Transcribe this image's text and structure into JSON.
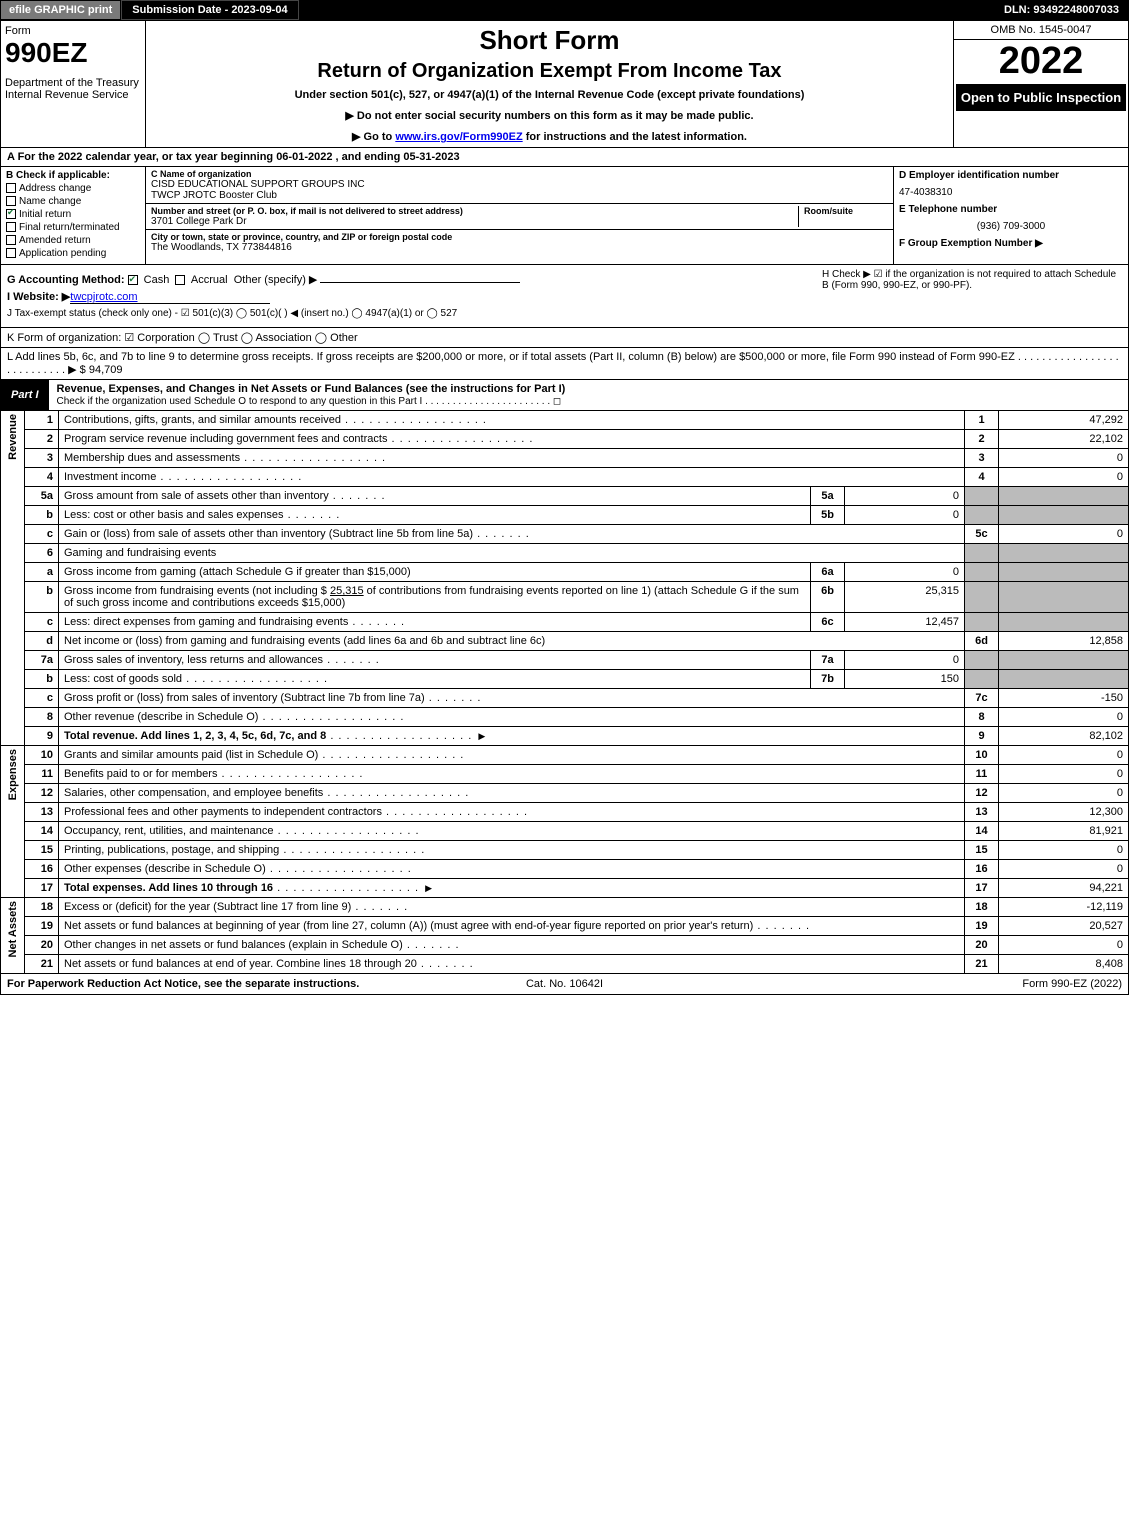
{
  "topbar": {
    "efile": "efile GRAPHIC print",
    "submission": "Submission Date - 2023-09-04",
    "dln": "DLN: 93492248007033"
  },
  "header": {
    "form_word": "Form",
    "form_no": "990EZ",
    "dept": "Department of the Treasury\nInternal Revenue Service",
    "short_form": "Short Form",
    "title": "Return of Organization Exempt From Income Tax",
    "under": "Under section 501(c), 527, or 4947(a)(1) of the Internal Revenue Code (except private foundations)",
    "instr1": "▶ Do not enter social security numbers on this form as it may be made public.",
    "instr2_pre": "▶ Go to ",
    "instr2_link": "www.irs.gov/Form990EZ",
    "instr2_post": " for instructions and the latest information.",
    "omb": "OMB No. 1545-0047",
    "year": "2022",
    "open": "Open to Public Inspection"
  },
  "rowA": "A  For the 2022 calendar year, or tax year beginning 06-01-2022  , and ending 05-31-2023",
  "B": {
    "label": "B  Check if applicable:",
    "items": [
      {
        "label": "Address change",
        "checked": false
      },
      {
        "label": "Name change",
        "checked": false
      },
      {
        "label": "Initial return",
        "checked": true
      },
      {
        "label": "Final return/terminated",
        "checked": false
      },
      {
        "label": "Amended return",
        "checked": false
      },
      {
        "label": "Application pending",
        "checked": false
      }
    ]
  },
  "C": {
    "name_lbl": "C Name of organization",
    "name": "CISD EDUCATIONAL SUPPORT GROUPS INC",
    "name2": "TWCP JROTC Booster Club",
    "addr_lbl": "Number and street (or P. O. box, if mail is not delivered to street address)",
    "room_lbl": "Room/suite",
    "addr": "3701 College Park Dr",
    "city_lbl": "City or town, state or province, country, and ZIP or foreign postal code",
    "city": "The Woodlands, TX   773844816"
  },
  "D": {
    "ein_lbl": "D Employer identification number",
    "ein": "47-4038310",
    "tel_lbl": "E Telephone number",
    "tel": "(936) 709-3000",
    "grp_lbl": "F Group Exemption Number  ▶"
  },
  "G": {
    "label": "G Accounting Method:",
    "cash": "Cash",
    "accrual": "Accrual",
    "other": "Other (specify) ▶"
  },
  "H": "H   Check ▶ ☑ if the organization is not required to attach Schedule B (Form 990, 990-EZ, or 990-PF).",
  "I": {
    "label": "I Website: ▶",
    "val": "twcpjrotc.com"
  },
  "J": "J Tax-exempt status (check only one) - ☑ 501(c)(3)  ◯ 501(c)(  ) ◀ (insert no.)  ◯ 4947(a)(1) or  ◯ 527",
  "K": "K Form of organization:   ☑ Corporation   ◯ Trust   ◯ Association   ◯ Other",
  "L": {
    "text": "L Add lines 5b, 6c, and 7b to line 9 to determine gross receipts. If gross receipts are $200,000 or more, or if total assets (Part II, column (B) below) are $500,000 or more, file Form 990 instead of Form 990-EZ  .  .  .  .  .  .  .  .  .  .  .  .  .  .  .  .  .  .  .  .  .  .  .  .  .  .  .   ▶ $",
    "val": "94,709"
  },
  "part1": {
    "tab": "Part I",
    "title": "Revenue, Expenses, and Changes in Net Assets or Fund Balances (see the instructions for Part I)",
    "check": "Check if the organization used Schedule O to respond to any question in this Part I  .  .  .  .  .  .  .  .  .  .  .  .  .  .  .  .  .  .  .  .  .  .  .  ◻"
  },
  "sections": {
    "revenue": "Revenue",
    "expenses": "Expenses",
    "netassets": "Net Assets"
  },
  "lines": {
    "1": {
      "no": "1",
      "desc": "Contributions, gifts, grants, and similar amounts received",
      "rno": "1",
      "val": "47,292"
    },
    "2": {
      "no": "2",
      "desc": "Program service revenue including government fees and contracts",
      "rno": "2",
      "val": "22,102"
    },
    "3": {
      "no": "3",
      "desc": "Membership dues and assessments",
      "rno": "3",
      "val": "0"
    },
    "4": {
      "no": "4",
      "desc": "Investment income",
      "rno": "4",
      "val": "0"
    },
    "5a": {
      "no": "5a",
      "desc": "Gross amount from sale of assets other than inventory",
      "sub": "5a",
      "sval": "0"
    },
    "5b": {
      "no": "b",
      "desc": "Less: cost or other basis and sales expenses",
      "sub": "5b",
      "sval": "0"
    },
    "5c": {
      "no": "c",
      "desc": "Gain or (loss) from sale of assets other than inventory (Subtract line 5b from line 5a)",
      "rno": "5c",
      "val": "0"
    },
    "6": {
      "no": "6",
      "desc": "Gaming and fundraising events"
    },
    "6a": {
      "no": "a",
      "desc": "Gross income from gaming (attach Schedule G if greater than $15,000)",
      "sub": "6a",
      "sval": "0"
    },
    "6b": {
      "no": "b",
      "desc_a": "Gross income from fundraising events (not including $ ",
      "desc_amt": "25,315",
      "desc_b": " of contributions from fundraising events reported on line 1) (attach Schedule G if the sum of such gross income and contributions exceeds $15,000)",
      "sub": "6b",
      "sval": "25,315"
    },
    "6c": {
      "no": "c",
      "desc": "Less: direct expenses from gaming and fundraising events",
      "sub": "6c",
      "sval": "12,457"
    },
    "6d": {
      "no": "d",
      "desc": "Net income or (loss) from gaming and fundraising events (add lines 6a and 6b and subtract line 6c)",
      "rno": "6d",
      "val": "12,858"
    },
    "7a": {
      "no": "7a",
      "desc": "Gross sales of inventory, less returns and allowances",
      "sub": "7a",
      "sval": "0"
    },
    "7b": {
      "no": "b",
      "desc": "Less: cost of goods sold",
      "sub": "7b",
      "sval": "150"
    },
    "7c": {
      "no": "c",
      "desc": "Gross profit or (loss) from sales of inventory (Subtract line 7b from line 7a)",
      "rno": "7c",
      "val": "-150"
    },
    "8": {
      "no": "8",
      "desc": "Other revenue (describe in Schedule O)",
      "rno": "8",
      "val": "0"
    },
    "9": {
      "no": "9",
      "desc": "Total revenue. Add lines 1, 2, 3, 4, 5c, 6d, 7c, and 8",
      "rno": "9",
      "val": "82,102",
      "bold": true
    },
    "10": {
      "no": "10",
      "desc": "Grants and similar amounts paid (list in Schedule O)",
      "rno": "10",
      "val": "0"
    },
    "11": {
      "no": "11",
      "desc": "Benefits paid to or for members",
      "rno": "11",
      "val": "0"
    },
    "12": {
      "no": "12",
      "desc": "Salaries, other compensation, and employee benefits",
      "rno": "12",
      "val": "0"
    },
    "13": {
      "no": "13",
      "desc": "Professional fees and other payments to independent contractors",
      "rno": "13",
      "val": "12,300"
    },
    "14": {
      "no": "14",
      "desc": "Occupancy, rent, utilities, and maintenance",
      "rno": "14",
      "val": "81,921"
    },
    "15": {
      "no": "15",
      "desc": "Printing, publications, postage, and shipping",
      "rno": "15",
      "val": "0"
    },
    "16": {
      "no": "16",
      "desc": "Other expenses (describe in Schedule O)",
      "rno": "16",
      "val": "0"
    },
    "17": {
      "no": "17",
      "desc": "Total expenses. Add lines 10 through 16",
      "rno": "17",
      "val": "94,221",
      "bold": true
    },
    "18": {
      "no": "18",
      "desc": "Excess or (deficit) for the year (Subtract line 17 from line 9)",
      "rno": "18",
      "val": "-12,119"
    },
    "19": {
      "no": "19",
      "desc": "Net assets or fund balances at beginning of year (from line 27, column (A)) (must agree with end-of-year figure reported on prior year's return)",
      "rno": "19",
      "val": "20,527"
    },
    "20": {
      "no": "20",
      "desc": "Other changes in net assets or fund balances (explain in Schedule O)",
      "rno": "20",
      "val": "0"
    },
    "21": {
      "no": "21",
      "desc": "Net assets or fund balances at end of year. Combine lines 18 through 20",
      "rno": "21",
      "val": "8,408"
    }
  },
  "footer": {
    "left": "For Paperwork Reduction Act Notice, see the separate instructions.",
    "cat": "Cat. No. 10642I",
    "right": "Form 990-EZ (2022)"
  }
}
